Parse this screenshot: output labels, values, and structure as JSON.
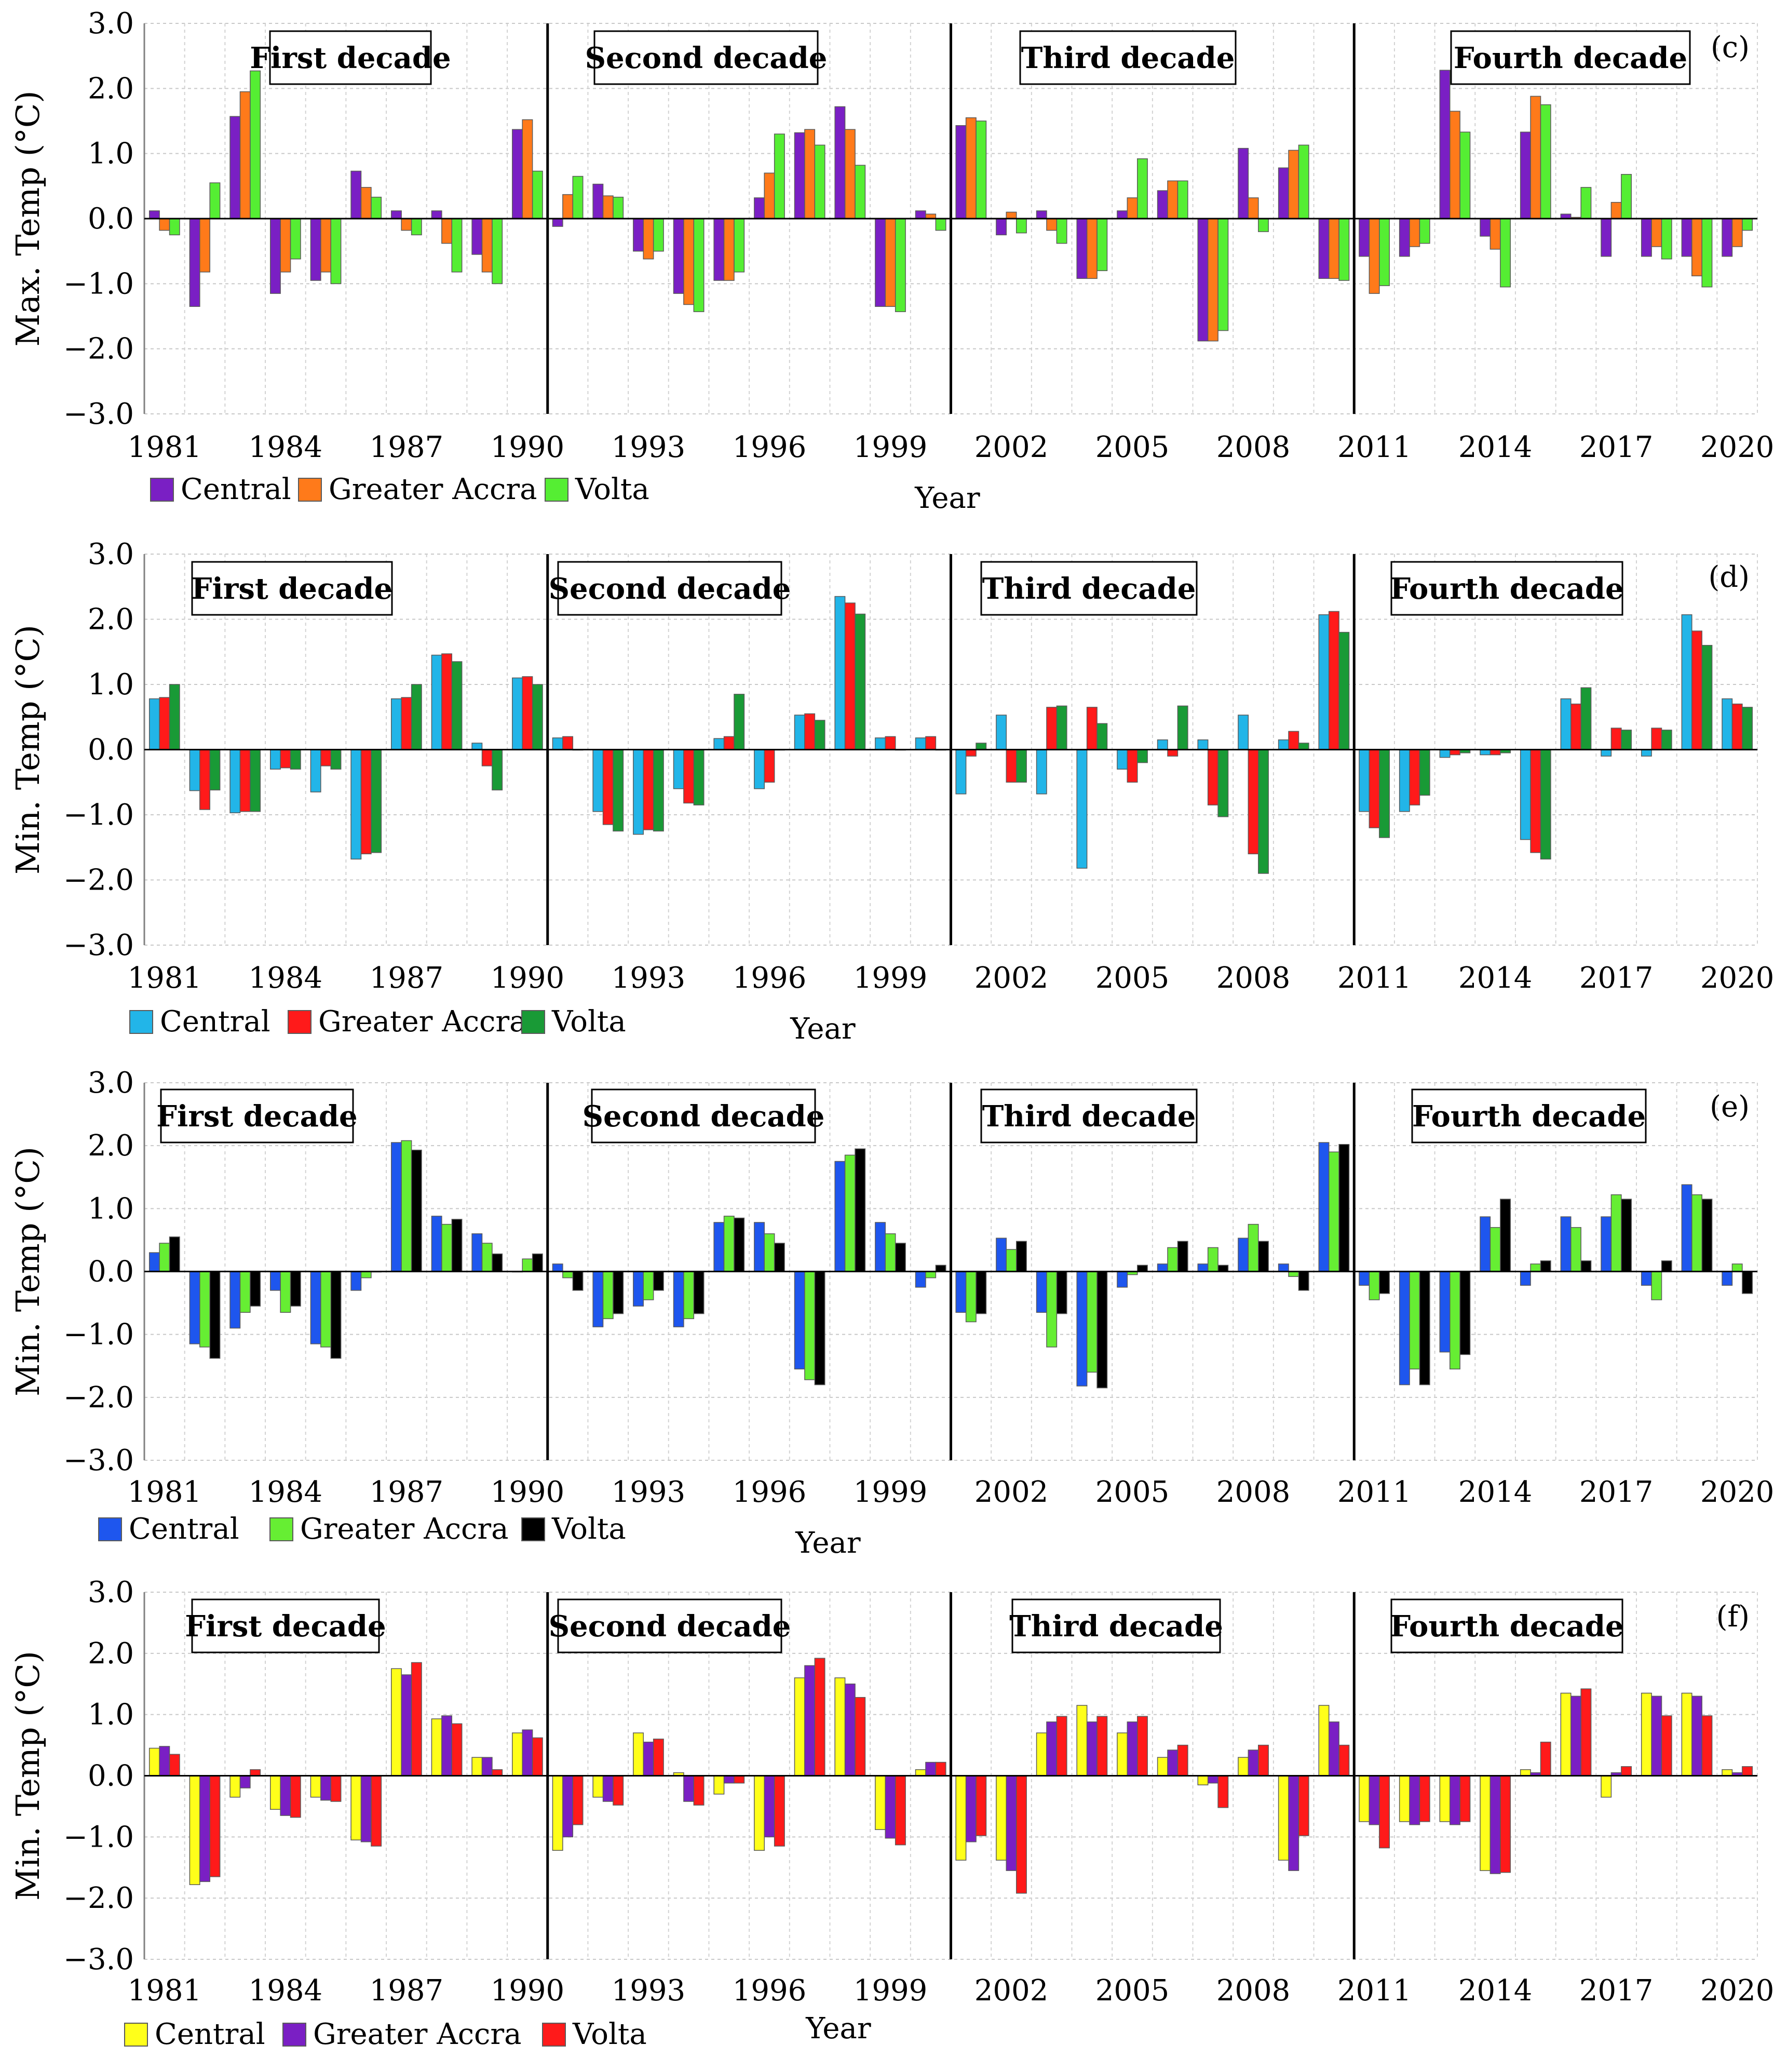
{
  "years": [
    "1981",
    "1982",
    "1983",
    "1984",
    "1985",
    "1986",
    "1987",
    "1988",
    "1989",
    "1990",
    "1991",
    "1992",
    "1993",
    "1994",
    "1995",
    "1996",
    "1997",
    "1998",
    "1999",
    "2000",
    "2001",
    "2002",
    "2003",
    "2004",
    "2005",
    "2006",
    "2007",
    "2008",
    "2009",
    "2010",
    "2011",
    "2012",
    "2013",
    "2014",
    "2015",
    "2016",
    "2017",
    "2018",
    "2019",
    "2020"
  ],
  "x_tick_labels": [
    "1981",
    "1984",
    "1987",
    "1990",
    "1993",
    "1996",
    "1999",
    "2002",
    "2005",
    "2008",
    "2011",
    "2014",
    "2017",
    "2020"
  ],
  "y_ticks": [
    "3.0",
    "2.0",
    "1.0",
    "0.0",
    "−1.0",
    "−2.0",
    "−3.0"
  ],
  "decades": [
    "First decade",
    "Second decade",
    "Third decade",
    "Fourth decade"
  ],
  "chart_data": [
    {
      "type": "bar",
      "panel": "(c)",
      "ylabel": "Max. Temp (°C)",
      "xlabel": "Year",
      "ylim": [
        -3,
        3
      ],
      "series": [
        {
          "name": "Central",
          "color": "#7a1fc4",
          "values": [
            0.12,
            -1.35,
            1.57,
            -1.15,
            -0.95,
            0.73,
            0.12,
            0.12,
            -0.55,
            1.37,
            -0.12,
            0.53,
            -0.5,
            -1.15,
            -0.95,
            0.32,
            1.32,
            1.72,
            -1.35,
            0.12,
            1.43,
            -0.25,
            0.12,
            -0.92,
            0.12,
            0.43,
            -1.88,
            1.08,
            0.78,
            -0.92,
            -0.58,
            -0.58,
            2.28,
            -0.27,
            1.33,
            0.07,
            -0.58,
            -0.58,
            -0.58,
            -0.58
          ]
        },
        {
          "name": "Greater Accra",
          "color": "#ff7a1a",
          "values": [
            -0.18,
            -0.82,
            1.95,
            -0.82,
            -0.82,
            0.48,
            -0.18,
            -0.38,
            -0.82,
            1.52,
            0.37,
            0.35,
            -0.62,
            -1.32,
            -0.95,
            0.7,
            1.37,
            1.37,
            -1.35,
            0.07,
            1.55,
            0.1,
            -0.18,
            -0.92,
            0.32,
            0.58,
            -1.88,
            0.32,
            1.05,
            -0.92,
            -1.15,
            -0.43,
            1.65,
            -0.47,
            1.88,
            0.02,
            0.25,
            -0.43,
            -0.88,
            -0.43
          ]
        },
        {
          "name": "Volta",
          "color": "#55ee33",
          "values": [
            -0.25,
            0.55,
            2.27,
            -0.62,
            -1.0,
            0.33,
            -0.25,
            -0.82,
            -1.0,
            0.73,
            0.65,
            0.33,
            -0.5,
            -1.43,
            -0.82,
            1.3,
            1.13,
            0.82,
            -1.43,
            -0.18,
            1.5,
            -0.22,
            -0.38,
            -0.8,
            0.92,
            0.58,
            -1.72,
            -0.2,
            1.13,
            -0.95,
            -1.03,
            -0.38,
            1.33,
            -1.05,
            1.75,
            0.48,
            0.68,
            -0.62,
            -1.05,
            -0.18
          ]
        }
      ]
    },
    {
      "type": "bar",
      "panel": "(d)",
      "ylabel": "Min. Temp (°C)",
      "xlabel": "Year",
      "ylim": [
        -3,
        3
      ],
      "series": [
        {
          "name": "Central",
          "color": "#22b5e8",
          "values": [
            0.78,
            -0.63,
            -0.97,
            -0.3,
            -0.65,
            -1.68,
            0.78,
            1.45,
            0.1,
            1.1,
            0.18,
            -0.95,
            -1.3,
            -0.6,
            0.17,
            -0.6,
            0.53,
            2.35,
            0.18,
            0.18,
            -0.68,
            0.53,
            -0.68,
            -1.82,
            -0.3,
            0.15,
            0.15,
            0.53,
            0.15,
            2.07,
            -0.95,
            -0.95,
            -0.12,
            -0.08,
            -1.38,
            0.78,
            -0.1,
            -0.1,
            2.07,
            0.78
          ]
        },
        {
          "name": "Greater Accra",
          "color": "#ff1a1a",
          "values": [
            0.8,
            -0.92,
            -0.95,
            -0.28,
            -0.25,
            -1.6,
            0.8,
            1.47,
            -0.25,
            1.12,
            0.2,
            -1.15,
            -1.23,
            -0.82,
            0.2,
            -0.5,
            0.55,
            2.25,
            0.2,
            0.2,
            -0.1,
            -0.5,
            0.65,
            0.65,
            -0.5,
            -0.1,
            -0.85,
            -1.6,
            0.28,
            2.12,
            -1.2,
            -0.85,
            -0.08,
            -0.08,
            -1.58,
            0.7,
            0.33,
            0.33,
            1.82,
            0.7
          ]
        },
        {
          "name": "Volta",
          "color": "#199a36",
          "values": [
            1.0,
            -0.62,
            -0.95,
            -0.3,
            -0.3,
            -1.58,
            1.0,
            1.35,
            -0.62,
            1.0,
            0.0,
            -1.25,
            -1.25,
            -0.85,
            0.85,
            0.0,
            0.45,
            2.08,
            0.0,
            0.0,
            0.1,
            -0.5,
            0.67,
            0.4,
            -0.2,
            0.67,
            -1.03,
            -1.9,
            0.1,
            1.8,
            -1.35,
            -0.7,
            -0.05,
            -0.05,
            -1.68,
            0.95,
            0.3,
            0.3,
            1.6,
            0.65
          ]
        }
      ]
    },
    {
      "type": "bar",
      "panel": "(e)",
      "ylabel": "Min. Temp (°C)",
      "xlabel": "Year",
      "ylim": [
        -3,
        3
      ],
      "series": [
        {
          "name": "Central",
          "color": "#1e56ee",
          "values": [
            0.3,
            -1.15,
            -0.9,
            -0.3,
            -1.15,
            -0.3,
            2.05,
            0.88,
            0.6,
            0.0,
            0.12,
            -0.88,
            -0.55,
            -0.88,
            0.78,
            0.78,
            -1.55,
            1.75,
            0.78,
            -0.25,
            -0.65,
            0.53,
            -0.65,
            -1.82,
            -0.25,
            0.12,
            0.12,
            0.53,
            0.12,
            2.05,
            -0.22,
            -1.8,
            -1.28,
            0.87,
            -0.22,
            0.87,
            0.87,
            -0.22,
            1.38,
            -0.22
          ]
        },
        {
          "name": "Greater Accra",
          "color": "#66ee33",
          "values": [
            0.45,
            -1.2,
            -0.65,
            -0.65,
            -1.2,
            -0.1,
            2.08,
            0.75,
            0.45,
            0.2,
            -0.1,
            -0.75,
            -0.45,
            -0.75,
            0.88,
            0.6,
            -1.72,
            1.85,
            0.6,
            -0.1,
            -0.8,
            0.35,
            -1.2,
            -1.6,
            -0.05,
            0.38,
            0.38,
            0.75,
            -0.08,
            1.9,
            -0.45,
            -1.55,
            -1.55,
            0.7,
            0.12,
            0.7,
            1.22,
            -0.45,
            1.22,
            0.12
          ]
        },
        {
          "name": "Volta",
          "color": "#000000",
          "values": [
            0.55,
            -1.38,
            -0.55,
            -0.55,
            -1.38,
            0.0,
            1.93,
            0.83,
            0.28,
            0.28,
            -0.3,
            -0.67,
            -0.3,
            -0.67,
            0.85,
            0.45,
            -1.8,
            1.95,
            0.45,
            0.1,
            -0.67,
            0.48,
            -0.67,
            -1.85,
            0.1,
            0.48,
            0.1,
            0.48,
            -0.3,
            2.02,
            -0.35,
            -1.8,
            -1.32,
            1.15,
            0.17,
            0.17,
            1.15,
            0.17,
            1.15,
            -0.35
          ]
        }
      ]
    },
    {
      "type": "bar",
      "panel": "(f)",
      "ylabel": "Min. Temp (°C)",
      "xlabel": "Year",
      "ylim": [
        -3,
        3
      ],
      "series": [
        {
          "name": "Central",
          "color": "#ffff1a",
          "values": [
            0.45,
            -1.78,
            -0.35,
            -0.55,
            -0.35,
            -1.05,
            1.75,
            0.93,
            0.3,
            0.7,
            -1.22,
            -0.35,
            0.7,
            0.05,
            -0.3,
            -1.22,
            1.6,
            1.6,
            -0.88,
            0.1,
            -1.38,
            -1.38,
            0.7,
            1.15,
            0.7,
            0.3,
            -0.15,
            0.3,
            -1.38,
            1.15,
            -0.75,
            -0.75,
            -0.75,
            -1.55,
            0.1,
            1.35,
            -0.35,
            1.35,
            1.35,
            0.1
          ]
        },
        {
          "name": "Greater Accra",
          "color": "#7a1fc4",
          "values": [
            0.48,
            -1.73,
            -0.2,
            -0.65,
            -0.4,
            -1.08,
            1.65,
            0.98,
            0.3,
            0.75,
            -1.0,
            -0.42,
            0.55,
            -0.42,
            -0.12,
            -1.0,
            1.8,
            1.5,
            -1.02,
            0.22,
            -1.08,
            -1.55,
            0.88,
            0.88,
            0.88,
            0.42,
            -0.12,
            0.42,
            -1.55,
            0.88,
            -0.8,
            -0.8,
            -0.8,
            -1.6,
            0.05,
            1.3,
            0.05,
            1.3,
            1.3,
            0.05
          ]
        },
        {
          "name": "Volta",
          "color": "#ff1a1a",
          "values": [
            0.35,
            -1.65,
            0.1,
            -0.68,
            -0.42,
            -1.15,
            1.85,
            0.85,
            0.1,
            0.62,
            -0.8,
            -0.48,
            0.6,
            -0.48,
            -0.12,
            -1.15,
            1.92,
            1.28,
            -1.13,
            0.22,
            -0.98,
            -1.92,
            0.97,
            0.97,
            0.97,
            0.5,
            -0.52,
            0.5,
            -0.98,
            0.5,
            -1.18,
            -0.75,
            -0.75,
            -1.58,
            0.55,
            1.42,
            0.15,
            0.98,
            0.98,
            0.15
          ]
        }
      ]
    }
  ]
}
